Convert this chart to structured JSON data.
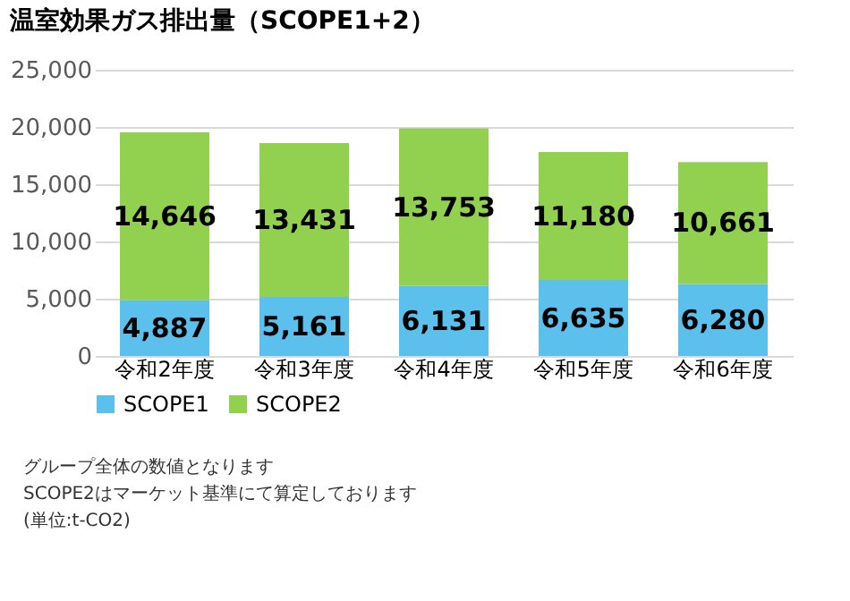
{
  "chart_data": {
    "type": "bar",
    "title": "温室効果ガス排出量（SCOPE1+2）",
    "categories": [
      "令和2年度",
      "令和3年度",
      "令和4年度",
      "令和5年度",
      "令和6年度"
    ],
    "series": [
      {
        "name": "SCOPE1",
        "color": "#5bc0eb",
        "values": [
          4887,
          5161,
          6131,
          6635,
          6280
        ],
        "value_labels": [
          "4,887",
          "5,161",
          "6,131",
          "6,635",
          "6,280"
        ]
      },
      {
        "name": "SCOPE2",
        "color": "#92d050",
        "values": [
          14646,
          13431,
          13753,
          11180,
          10661
        ],
        "value_labels": [
          "14,646",
          "13,431",
          "13,753",
          "11,180",
          "10,661"
        ]
      }
    ],
    "stacked": true,
    "ylim": [
      0,
      25000
    ],
    "yticks": [
      0,
      {
        "value": 5000,
        "label": "5,000"
      },
      {
        "value": 10000,
        "label": "10,000"
      },
      {
        "value": 15000,
        "label": "15,000"
      },
      {
        "value": 20000,
        "label": "20,000"
      },
      {
        "value": 25000,
        "label": "25,000"
      }
    ],
    "grid": "y",
    "legend": "bottom",
    "annotations": [
      "グループ全体の数値となります",
      "SCOPE2はマーケット基準にて算定しております",
      "(単位:t-CO2)"
    ]
  }
}
